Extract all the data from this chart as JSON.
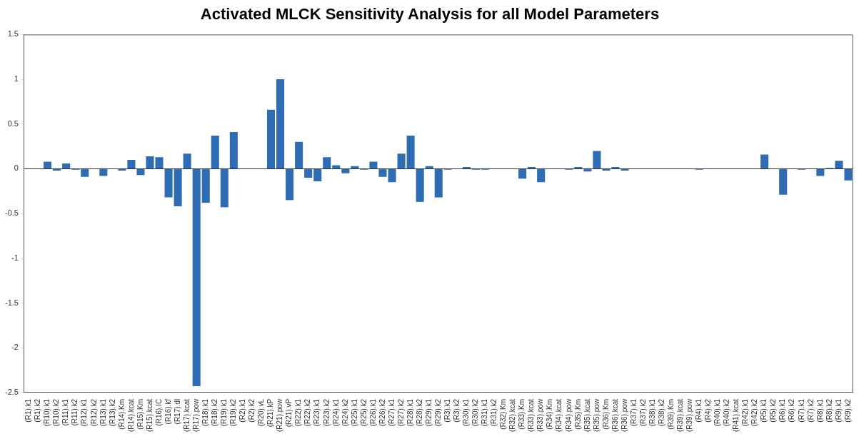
{
  "chart_data": {
    "type": "bar",
    "title": "Activated MLCK Sensitivity Analysis for all Model Parameters",
    "categories": [
      "(R1).k1",
      "(R1).k2",
      "(R10).k1",
      "(R10).k2",
      "(R11).k1",
      "(R11).k2",
      "(R12).k1",
      "(R12).k2",
      "(R13).k1",
      "(R13).k2",
      "(R14).Km",
      "(R14).kcat",
      "(R15).Km",
      "(R15).kcat",
      "(R16).IC",
      "(R16).kf",
      "(R17).dl",
      "(R17).kcat",
      "(R17).pow",
      "(R18).k1",
      "(R18).k2",
      "(R19).k1",
      "(R19).k2",
      "(R2).k1",
      "(R2).k2",
      "(R20).vL",
      "(R21).kP",
      "(R21).pow",
      "(R21).vP",
      "(R22).k1",
      "(R22).k2",
      "(R23).k1",
      "(R23).k2",
      "(R24).k1",
      "(R24).k2",
      "(R25).k1",
      "(R25).k2",
      "(R26).k1",
      "(R26).k2",
      "(R27).k1",
      "(R27).k2",
      "(R28).k1",
      "(R28).k2",
      "(R29).k1",
      "(R29).k2",
      "(R3).k1",
      "(R3).k2",
      "(R30).k1",
      "(R30).k2",
      "(R31).k1",
      "(R31).k2",
      "(R32).Km",
      "(R32).kcat",
      "(R33).Km",
      "(R33).kcat",
      "(R33).pow",
      "(R34).Km",
      "(R34).kcat",
      "(R34).pow",
      "(R35).Km",
      "(R35).kcat",
      "(R35).pow",
      "(R36).Km",
      "(R36).kcat",
      "(R36).pow",
      "(R37).k1",
      "(R37).k2",
      "(R38).k1",
      "(R38).k2",
      "(R39).Km",
      "(R39).kcat",
      "(R39).pow",
      "(R4).k1",
      "(R4).k2",
      "(R40).k1",
      "(R40).k2",
      "(R41).kcat",
      "(R42).k1",
      "(R42).k2",
      "(R5).k1",
      "(R5).k2",
      "(R6).k1",
      "(R6).k2",
      "(R7).k1",
      "(R7).k2",
      "(R8).k1",
      "(R8).k2",
      "(R9).k1",
      "(R9).k2"
    ],
    "values": [
      0,
      0,
      0.08,
      -0.02,
      0.06,
      -0.01,
      -0.09,
      0,
      -0.08,
      0,
      -0.02,
      0.1,
      -0.07,
      0.14,
      0.13,
      -0.32,
      -0.42,
      0.17,
      -2.43,
      -0.38,
      0.37,
      -0.43,
      0.41,
      0,
      0,
      0,
      0.66,
      1.0,
      -0.35,
      0.3,
      -0.1,
      -0.14,
      0.13,
      0.04,
      -0.05,
      0.03,
      -0.01,
      0.08,
      -0.09,
      -0.15,
      0.17,
      0.37,
      -0.37,
      0.03,
      -0.32,
      -0.01,
      0,
      0.02,
      -0.01,
      -0.01,
      0,
      0,
      0,
      -0.11,
      0.02,
      -0.15,
      0,
      0,
      -0.01,
      0.02,
      -0.03,
      0.2,
      -0.02,
      0.02,
      -0.02,
      0,
      0,
      0,
      0,
      0,
      0,
      0,
      -0.01,
      0,
      0,
      0,
      0,
      0,
      0,
      0.16,
      0,
      -0.29,
      0,
      -0.01,
      0,
      -0.08,
      0.01,
      0.09,
      -0.13
    ],
    "color": "#2e6db4",
    "ylim": [
      -2.5,
      1.5
    ],
    "yticks": [
      -2.5,
      -2,
      -1.5,
      -1,
      -0.5,
      0,
      0.5,
      1,
      1.5
    ],
    "ref_lines": [
      {
        "axis": "y",
        "value": 0,
        "color": "#333333"
      }
    ],
    "grid": false,
    "legend": false
  }
}
